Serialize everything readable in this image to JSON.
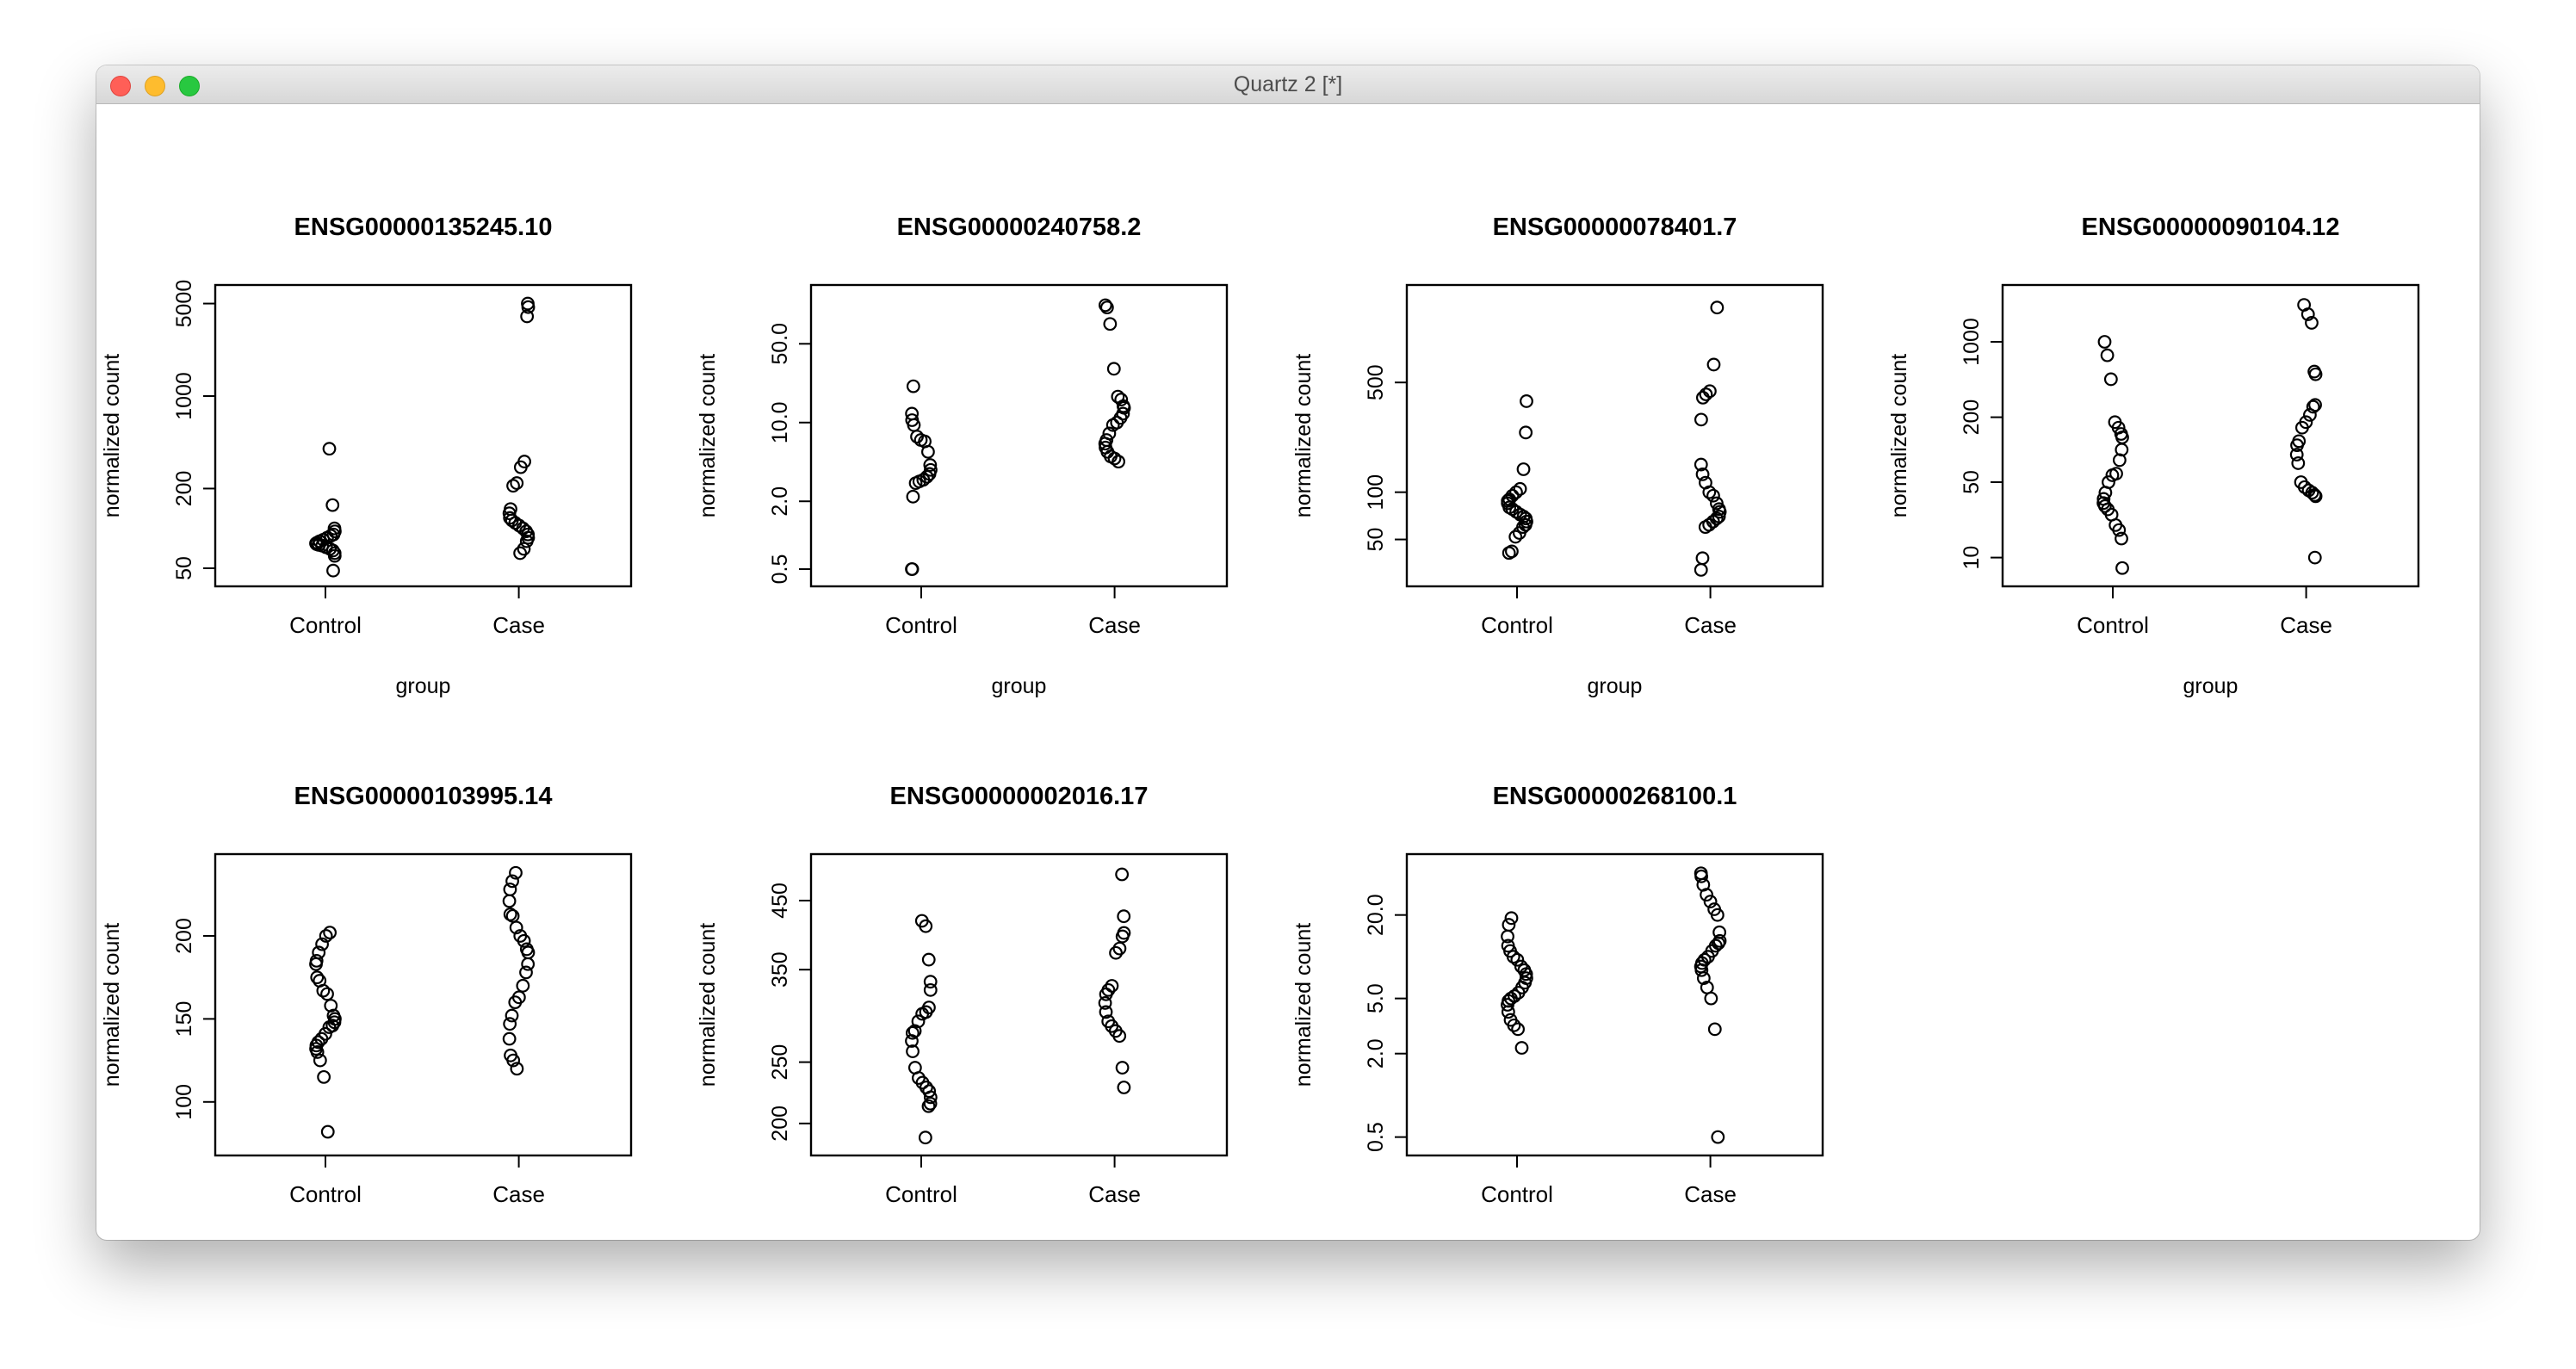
{
  "window": {
    "title": "Quartz 2 [*]",
    "controls": [
      "close",
      "minimize",
      "zoom"
    ]
  },
  "chart_data": [
    {
      "type": "scatter",
      "title": "ENSG00000135245.10",
      "xlabel": "group",
      "ylabel": "normalized count",
      "categories": [
        "Control",
        "Case"
      ],
      "yscale": "log",
      "ylim": [
        45,
        5600
      ],
      "yticks": [
        50,
        200,
        1000,
        5000
      ],
      "series": [
        {
          "category": "Control",
          "values": [
            400,
            150,
            100,
            95,
            90,
            88,
            85,
            82,
            80,
            78,
            77,
            76,
            75,
            74,
            72,
            70,
            68,
            65,
            62,
            48
          ]
        },
        {
          "category": "Case",
          "values": [
            5000,
            4700,
            4000,
            320,
            290,
            220,
            210,
            140,
            130,
            120,
            115,
            110,
            105,
            100,
            95,
            90,
            85,
            80,
            70,
            65
          ]
        }
      ]
    },
    {
      "type": "scatter",
      "title": "ENSG00000240758.2",
      "xlabel": "group",
      "ylabel": "normalized count",
      "categories": [
        "Control",
        "Case"
      ],
      "yscale": "log",
      "ylim": [
        0.45,
        130
      ],
      "yticks": [
        0.5,
        2.0,
        10.0,
        50.0
      ],
      "series": [
        {
          "category": "Control",
          "values": [
            21,
            12,
            10.5,
            9.5,
            7.5,
            7,
            6.8,
            5.5,
            4.2,
            3.8,
            3.5,
            3.3,
            3.1,
            3.0,
            2.9,
            2.2,
            0.5,
            0.5
          ]
        },
        {
          "category": "Case",
          "values": [
            110,
            105,
            75,
            30,
            17,
            16,
            14,
            13.5,
            12,
            11,
            10,
            9.5,
            8,
            7,
            6.5,
            6,
            5.5,
            5,
            4.8,
            4.5
          ]
        }
      ]
    },
    {
      "type": "scatter",
      "title": "ENSG00000078401.7",
      "xlabel": "group",
      "ylabel": "normalized count",
      "categories": [
        "Control",
        "Case"
      ],
      "yscale": "log",
      "ylim": [
        30,
        1750
      ],
      "yticks": [
        50,
        100,
        500
      ],
      "series": [
        {
          "category": "Control",
          "values": [
            380,
            240,
            140,
            105,
            100,
            95,
            90,
            88,
            85,
            80,
            78,
            75,
            72,
            70,
            68,
            65,
            62,
            60,
            55,
            52,
            42,
            41
          ]
        },
        {
          "category": "Case",
          "values": [
            1500,
            650,
            440,
            420,
            400,
            290,
            150,
            130,
            115,
            100,
            95,
            85,
            78,
            75,
            70,
            68,
            65,
            62,
            60,
            38,
            32
          ]
        }
      ]
    },
    {
      "type": "scatter",
      "title": "ENSG00000090104.12",
      "xlabel": "group",
      "ylabel": "normalized count",
      "categories": [
        "Control",
        "Case"
      ],
      "yscale": "log",
      "ylim": [
        7,
        2600
      ],
      "yticks": [
        10,
        50,
        200,
        1000
      ],
      "series": [
        {
          "category": "Control",
          "values": [
            1000,
            750,
            450,
            180,
            160,
            140,
            130,
            100,
            80,
            60,
            58,
            50,
            40,
            35,
            32,
            30,
            28,
            25,
            20,
            18,
            15,
            8
          ]
        },
        {
          "category": "Case",
          "values": [
            2200,
            1800,
            1500,
            530,
            500,
            260,
            250,
            210,
            180,
            160,
            120,
            110,
            90,
            75,
            50,
            45,
            42,
            40,
            38,
            37,
            10
          ]
        }
      ]
    },
    {
      "type": "scatter",
      "title": "ENSG00000103995.14",
      "xlabel": "group",
      "ylabel": "normalized count",
      "categories": [
        "Control",
        "Case"
      ],
      "yscale": "linear",
      "ylim": [
        75,
        242
      ],
      "yticks": [
        100,
        150,
        200
      ],
      "series": [
        {
          "category": "Control",
          "values": [
            202,
            200,
            195,
            190,
            185,
            183,
            175,
            173,
            167,
            165,
            158,
            152,
            150,
            148,
            146,
            145,
            141,
            138,
            136,
            134,
            132,
            130,
            125,
            115,
            82
          ]
        },
        {
          "category": "Case",
          "values": [
            238,
            233,
            228,
            221,
            213,
            212,
            205,
            200,
            197,
            192,
            190,
            183,
            178,
            170,
            163,
            160,
            152,
            147,
            138,
            128,
            125,
            120
          ]
        }
      ]
    },
    {
      "type": "scatter",
      "title": "ENSG00000002016.17",
      "xlabel": "group",
      "ylabel": "normalized count",
      "categories": [
        "Control",
        "Case"
      ],
      "yscale": "log",
      "ylim": [
        186,
        510
      ],
      "yticks": [
        200,
        250,
        350,
        450
      ],
      "series": [
        {
          "category": "Control",
          "values": [
            418,
            410,
            363,
            335,
            325,
            305,
            300,
            298,
            290,
            280,
            278,
            270,
            260,
            245,
            236,
            232,
            228,
            225,
            220,
            215,
            213,
            190
          ]
        },
        {
          "category": "Case",
          "values": [
            495,
            425,
            400,
            395,
            378,
            372,
            330,
            325,
            320,
            310,
            300,
            290,
            285,
            280,
            275,
            245,
            228
          ]
        }
      ]
    },
    {
      "type": "scatter",
      "title": "ENSG00000268100.1",
      "xlabel": "group",
      "ylabel": "normalized count",
      "categories": [
        "Control",
        "Case"
      ],
      "yscale": "log",
      "ylim": [
        0.45,
        45
      ],
      "yticks": [
        0.5,
        2.0,
        5.0,
        20.0
      ],
      "series": [
        {
          "category": "Control",
          "values": [
            19,
            17,
            14,
            12,
            11,
            10,
            9.5,
            8.5,
            8,
            7.5,
            7,
            6.5,
            6,
            5.5,
            5.2,
            5,
            4.8,
            4.5,
            4,
            3.5,
            3.2,
            3,
            2.2
          ]
        },
        {
          "category": "Case",
          "values": [
            40,
            38,
            33,
            28,
            25,
            22,
            20,
            15,
            13,
            12.5,
            12,
            11,
            10,
            9.5,
            9,
            8.5,
            8,
            7,
            6,
            5,
            3,
            0.5
          ]
        }
      ]
    }
  ]
}
